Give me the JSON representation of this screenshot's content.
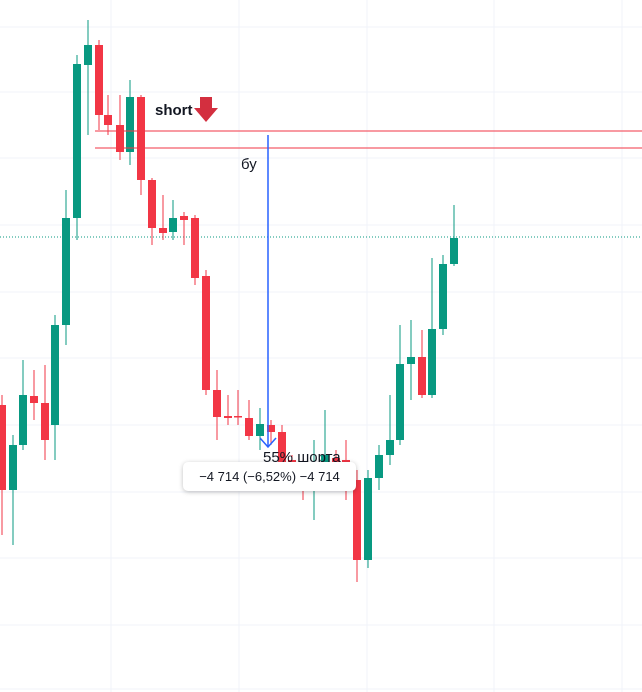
{
  "annotations": {
    "short": "short",
    "breakeven": "бу",
    "note": "55% шорта"
  },
  "tooltip": {
    "text": "−4 714 (−6,52%) −4 714"
  }
}
